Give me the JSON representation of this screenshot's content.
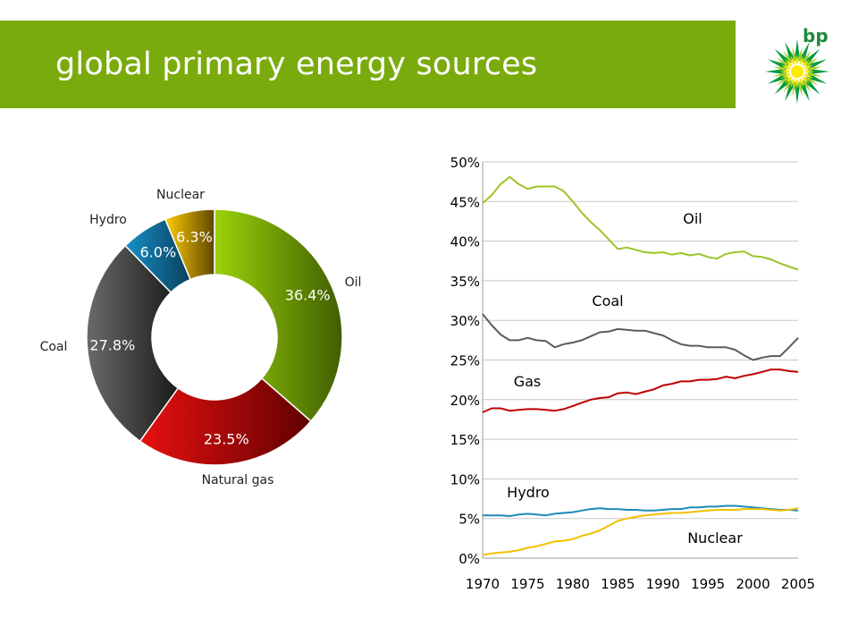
{
  "header": {
    "title": "global primary energy sources"
  },
  "logo": {
    "text": "bp",
    "colors": {
      "green": "#009a3d",
      "yellow": "#ffe900",
      "light_green": "#a8d02b"
    }
  },
  "chart_data": [
    {
      "type": "pie",
      "variant": "donut",
      "slices": [
        {
          "label": "Oil",
          "value": 36.4,
          "value_label": "36.4%",
          "color": "#7ab800"
        },
        {
          "label": "Natural gas",
          "value": 23.5,
          "value_label": "23.5%",
          "color": "#c00000"
        },
        {
          "label": "Coal",
          "value": 27.8,
          "value_label": "27.8%",
          "color": "#3c3c3c"
        },
        {
          "label": "Hydro",
          "value": 6.0,
          "value_label": "6.0%",
          "color": "#0070a8"
        },
        {
          "label": "Nuclear",
          "value": 6.3,
          "value_label": "6.3%",
          "color": "#e0b000"
        }
      ]
    },
    {
      "type": "line",
      "x": [
        1970,
        1971,
        1972,
        1973,
        1974,
        1975,
        1976,
        1977,
        1978,
        1979,
        1980,
        1981,
        1982,
        1983,
        1984,
        1985,
        1986,
        1987,
        1988,
        1989,
        1990,
        1991,
        1992,
        1993,
        1994,
        1995,
        1996,
        1997,
        1998,
        1999,
        2000,
        2001,
        2002,
        2003,
        2004,
        2005
      ],
      "xticks": [
        "1970",
        "1975",
        "1980",
        "1985",
        "1990",
        "1995",
        "2000",
        "2005"
      ],
      "ylim": [
        0,
        50
      ],
      "yticks": [
        "0%",
        "5%",
        "10%",
        "15%",
        "20%",
        "25%",
        "30%",
        "35%",
        "40%",
        "45%",
        "50%"
      ],
      "grid": true,
      "series": [
        {
          "name": "Oil",
          "color": "#9cc42a",
          "values": [
            44.8,
            45.8,
            47.2,
            48.1,
            47.2,
            46.6,
            46.9,
            46.9,
            46.9,
            46.3,
            45.0,
            43.6,
            42.4,
            41.4,
            40.2,
            39.0,
            39.2,
            38.9,
            38.6,
            38.5,
            38.6,
            38.3,
            38.5,
            38.2,
            38.4,
            38.0,
            37.8,
            38.4,
            38.6,
            38.7,
            38.1,
            38.0,
            37.7,
            37.2,
            36.8,
            36.4
          ]
        },
        {
          "name": "Coal",
          "color": "#5b5b5b",
          "values": [
            30.8,
            29.4,
            28.2,
            27.5,
            27.5,
            27.8,
            27.5,
            27.4,
            26.6,
            27.0,
            27.2,
            27.5,
            28.0,
            28.5,
            28.6,
            28.9,
            28.8,
            28.7,
            28.7,
            28.4,
            28.1,
            27.5,
            27.0,
            26.8,
            26.8,
            26.6,
            26.6,
            26.6,
            26.3,
            25.6,
            25.0,
            25.3,
            25.5,
            25.5,
            26.6,
            27.8
          ]
        },
        {
          "name": "Gas",
          "color": "#c00000",
          "values": [
            18.4,
            18.9,
            18.9,
            18.6,
            18.7,
            18.8,
            18.8,
            18.7,
            18.6,
            18.8,
            19.2,
            19.6,
            20.0,
            20.2,
            20.3,
            20.8,
            20.9,
            20.7,
            21.0,
            21.3,
            21.8,
            22.0,
            22.3,
            22.3,
            22.5,
            22.5,
            22.6,
            22.9,
            22.7,
            23.0,
            23.2,
            23.5,
            23.8,
            23.8,
            23.6,
            23.5
          ]
        },
        {
          "name": "Hydro",
          "color": "#1b8bb5",
          "values": [
            5.4,
            5.4,
            5.4,
            5.3,
            5.5,
            5.6,
            5.5,
            5.4,
            5.6,
            5.7,
            5.8,
            6.0,
            6.2,
            6.3,
            6.2,
            6.2,
            6.1,
            6.1,
            6.0,
            6.0,
            6.1,
            6.2,
            6.2,
            6.4,
            6.4,
            6.5,
            6.5,
            6.6,
            6.6,
            6.5,
            6.4,
            6.3,
            6.2,
            6.1,
            6.1,
            6.0
          ]
        },
        {
          "name": "Nuclear",
          "color": "#f0c000",
          "values": [
            0.4,
            0.6,
            0.7,
            0.8,
            1.0,
            1.3,
            1.5,
            1.8,
            2.1,
            2.2,
            2.4,
            2.8,
            3.1,
            3.5,
            4.1,
            4.7,
            5.0,
            5.2,
            5.4,
            5.5,
            5.6,
            5.7,
            5.7,
            5.8,
            5.9,
            6.0,
            6.1,
            6.1,
            6.1,
            6.2,
            6.2,
            6.2,
            6.1,
            6.0,
            6.1,
            6.3
          ]
        }
      ]
    }
  ]
}
